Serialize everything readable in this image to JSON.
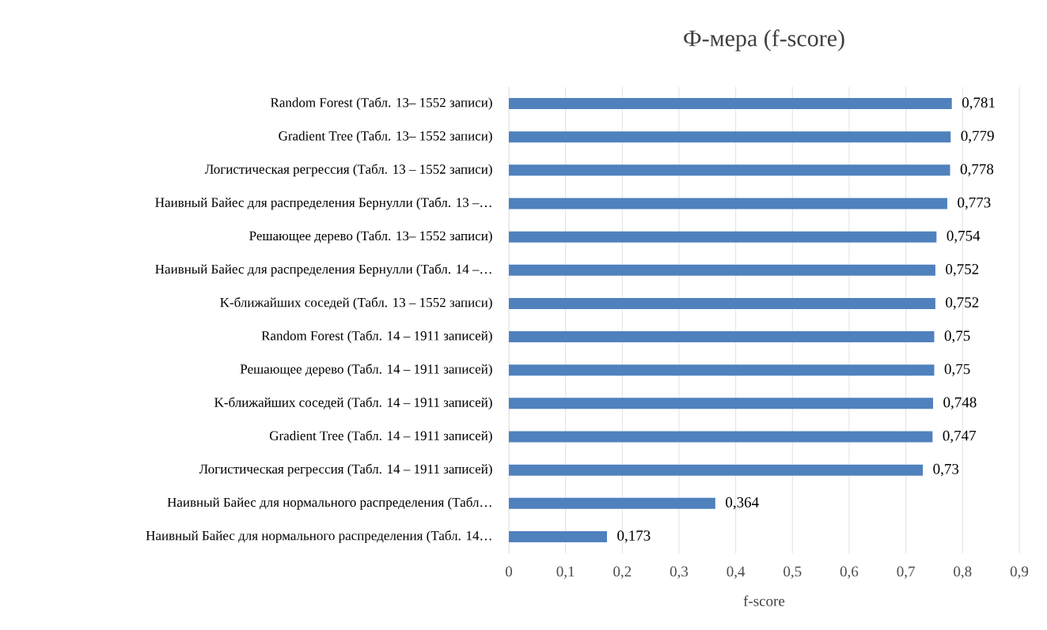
{
  "chart_data": {
    "type": "bar",
    "orientation": "horizontal",
    "title": "Ф-мера (f-score)",
    "xlabel": "f-score",
    "categories": [
      "Random Forest (Табл. 13– 1552 записи)",
      "Gradient Tree (Табл. 13– 1552 записи)",
      "Логистическая регрессия (Табл. 13 – 1552 записи)",
      "Наивный Байес для распределения Бернулли (Табл. 13 –…",
      "Решающее дерево (Табл. 13– 1552 записи)",
      "Наивный Байес для распределения Бернулли (Табл. 14 –…",
      "K-ближайших соседей (Табл. 13 – 1552 записи)",
      "Random Forest (Табл. 14 – 1911 записей)",
      "Решающее дерево (Табл. 14 – 1911 записей)",
      "K-ближайших соседей (Табл. 14 – 1911 записей)",
      "Gradient Tree (Табл. 14 – 1911 записей)",
      "Логистическая регрессия (Табл. 14 – 1911 записей)",
      "Наивный Байес для нормального распределения (Табл…",
      "Наивный Байес для нормального распределения (Табл. 14…"
    ],
    "values": [
      0.781,
      0.779,
      0.778,
      0.773,
      0.754,
      0.752,
      0.752,
      0.75,
      0.75,
      0.748,
      0.747,
      0.73,
      0.364,
      0.173
    ],
    "value_labels": [
      "0,781",
      "0,779",
      "0,778",
      "0,773",
      "0,754",
      "0,752",
      "0,752",
      "0,75",
      "0,75",
      "0,748",
      "0,747",
      "0,73",
      "0,364",
      "0,173"
    ],
    "color": "#4f81bd",
    "xlim": [
      0,
      0.9
    ],
    "xticks": [
      0,
      {
        "value": 0.1,
        "label": "0,1"
      },
      {
        "value": 0.2,
        "label": "0,2"
      },
      {
        "value": 0.3,
        "label": "0,3"
      },
      {
        "value": 0.4,
        "label": "0,4"
      },
      {
        "value": 0.5,
        "label": "0,5"
      },
      {
        "value": 0.6,
        "label": "0,6"
      },
      {
        "value": 0.7,
        "label": "0,7"
      },
      {
        "value": 0.8,
        "label": "0,8"
      },
      {
        "value": 0.9,
        "label": "0,9"
      }
    ],
    "grid": "x"
  }
}
